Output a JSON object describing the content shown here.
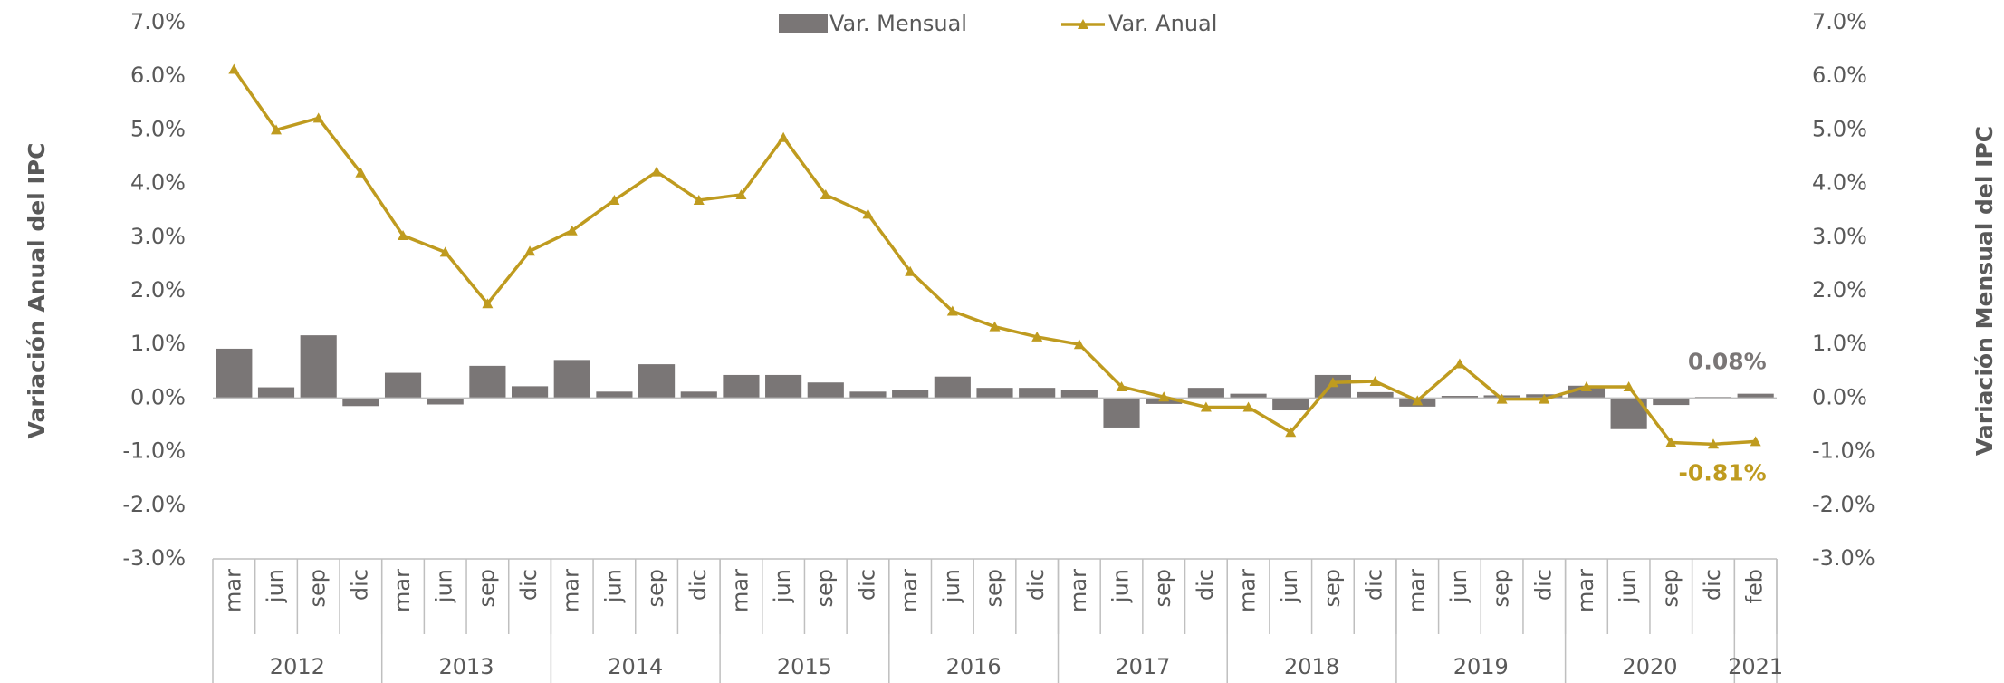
{
  "chart_data": {
    "type": "bar-line",
    "categories": [
      "mar",
      "jun",
      "sep",
      "dic",
      "mar",
      "jun",
      "sep",
      "dic",
      "mar",
      "jun",
      "sep",
      "dic",
      "mar",
      "jun",
      "sep",
      "dic",
      "mar",
      "jun",
      "sep",
      "dic",
      "mar",
      "jun",
      "sep",
      "dic",
      "mar",
      "jun",
      "sep",
      "dic",
      "mar",
      "jun",
      "sep",
      "dic",
      "mar",
      "jun",
      "sep",
      "dic",
      "feb"
    ],
    "groups": [
      "2012",
      "2013",
      "2014",
      "2015",
      "2016",
      "2017",
      "2018",
      "2019",
      "2020",
      "2021"
    ],
    "group_sizes": [
      4,
      4,
      4,
      4,
      4,
      4,
      4,
      4,
      4,
      1
    ],
    "y_label": "Variación Anual del IPC",
    "y2_label": "Variación Mensual del IPC",
    "ylim": [
      -3,
      7
    ],
    "yticks": [
      {
        "value": -3,
        "label": "-3.0%"
      },
      {
        "value": -2,
        "label": "-2.0%"
      },
      {
        "value": -1,
        "label": "-1.0%"
      },
      {
        "value": 0,
        "label": "0.0%"
      },
      {
        "value": 1,
        "label": "1.0%"
      },
      {
        "value": 2,
        "label": "2.0%"
      },
      {
        "value": 3,
        "label": "3.0%"
      },
      {
        "value": 4,
        "label": "4.0%"
      },
      {
        "value": 5,
        "label": "5.0%"
      },
      {
        "value": 6,
        "label": "6.0%"
      },
      {
        "value": 7,
        "label": "7.0%"
      }
    ],
    "y2lim": [
      -3,
      7
    ],
    "y2ticks": [
      {
        "value": -3,
        "label": "-3.0%"
      },
      {
        "value": -2,
        "label": "-2.0%"
      },
      {
        "value": -1,
        "label": "-1.0%"
      },
      {
        "value": 0,
        "label": "0.0%"
      },
      {
        "value": 1,
        "label": "1.0%"
      },
      {
        "value": 2,
        "label": "2.0%"
      },
      {
        "value": 3,
        "label": "3.0%"
      },
      {
        "value": 4,
        "label": "4.0%"
      },
      {
        "value": 5,
        "label": "5.0%"
      },
      {
        "value": 6,
        "label": "6.0%"
      },
      {
        "value": 7,
        "label": "7.0%"
      }
    ],
    "legend": "top",
    "series": [
      {
        "name": "Var. Mensual",
        "type": "bar",
        "axis": "y2",
        "color": "#7a7676",
        "values": [
          0.92,
          0.2,
          1.17,
          -0.15,
          0.47,
          -0.12,
          0.6,
          0.22,
          0.71,
          0.12,
          0.63,
          0.12,
          0.43,
          0.43,
          0.29,
          0.12,
          0.15,
          0.4,
          0.19,
          0.19,
          0.15,
          -0.55,
          -0.11,
          0.19,
          0.08,
          -0.23,
          0.43,
          0.11,
          -0.16,
          0.04,
          0.05,
          0.07,
          0.23,
          -0.58,
          -0.13,
          0.02,
          0.08
        ],
        "value_labels": [
          null,
          null,
          null,
          null,
          null,
          null,
          null,
          null,
          null,
          null,
          null,
          null,
          null,
          null,
          null,
          null,
          null,
          null,
          null,
          null,
          null,
          null,
          null,
          null,
          null,
          null,
          null,
          null,
          null,
          null,
          null,
          null,
          null,
          null,
          null,
          null,
          "0.08%"
        ]
      },
      {
        "name": "Var. Anual",
        "type": "line",
        "color": "#bf9b1f",
        "values": [
          6.13,
          5.0,
          5.22,
          4.2,
          3.03,
          2.72,
          1.76,
          2.74,
          3.12,
          3.69,
          4.22,
          3.69,
          3.79,
          4.86,
          3.79,
          3.43,
          2.36,
          1.62,
          1.33,
          1.14,
          1.0,
          0.21,
          0.02,
          -0.17,
          -0.17,
          -0.64,
          0.29,
          0.31,
          -0.05,
          0.64,
          -0.02,
          -0.02,
          0.21,
          0.21,
          -0.83,
          -0.86,
          -0.81
        ],
        "value_labels": [
          null,
          null,
          null,
          null,
          null,
          null,
          null,
          null,
          null,
          null,
          null,
          null,
          null,
          null,
          null,
          null,
          null,
          null,
          null,
          null,
          null,
          null,
          null,
          null,
          null,
          null,
          null,
          null,
          null,
          null,
          null,
          null,
          null,
          null,
          null,
          null,
          "-0.81%"
        ]
      }
    ]
  }
}
